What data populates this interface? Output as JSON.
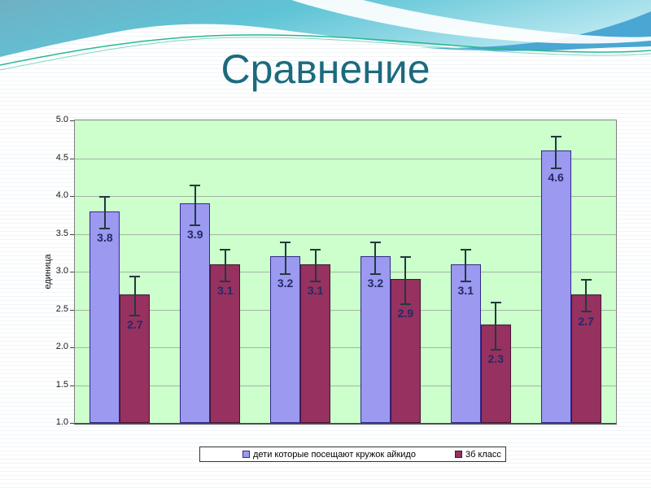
{
  "slide": {
    "title": "Сравнение"
  },
  "colors": {
    "title": "#1d6a7e",
    "plot_bg": "#ccffcc",
    "plot_border": "#808080",
    "axis_line": "#4d4d4d",
    "gridline": "#a3b5a3",
    "tick_label": "#1a1a1a",
    "error_bar": "#213a3e",
    "bar_label": "#252a66",
    "legend_border": "#333333",
    "legend_bg": "#ffffff",
    "banner_grad_left": "#6fb0c4",
    "banner_grad_mid": "#5fc4d6",
    "banner_grad_right": "#b7e7f0",
    "banner_wave_white": "#ffffff",
    "banner_wave_blue": "#4aa6d2",
    "banner_line_green": "#2ab795",
    "banner_line_green_light": "#7fd6c4"
  },
  "chart_data": {
    "type": "bar",
    "title": "Сравнение",
    "ylabel": "единица",
    "ylim": [
      1.0,
      5.0
    ],
    "yticks": [
      "5.0",
      "4.5",
      "4.0",
      "3.5",
      "3.0",
      "2.5",
      "2.0",
      "1.5",
      "1.0"
    ],
    "grid": true,
    "legend_position": "bottom",
    "groups": 6,
    "series": [
      {
        "name": "дети которые посещают кружок айкидо",
        "color": "#9b99f0",
        "border_color": "#31298a",
        "values": [
          3.8,
          3.9,
          3.2,
          3.2,
          3.1,
          4.6
        ],
        "errors": [
          0.2,
          0.25,
          0.2,
          0.2,
          0.2,
          0.2
        ]
      },
      {
        "name": "3б класс",
        "color": "#963160",
        "border_color": "#451537",
        "values": [
          2.7,
          3.1,
          3.1,
          2.9,
          2.3,
          2.7
        ],
        "errors": [
          0.25,
          0.2,
          0.2,
          0.3,
          0.3,
          0.2
        ]
      }
    ]
  }
}
